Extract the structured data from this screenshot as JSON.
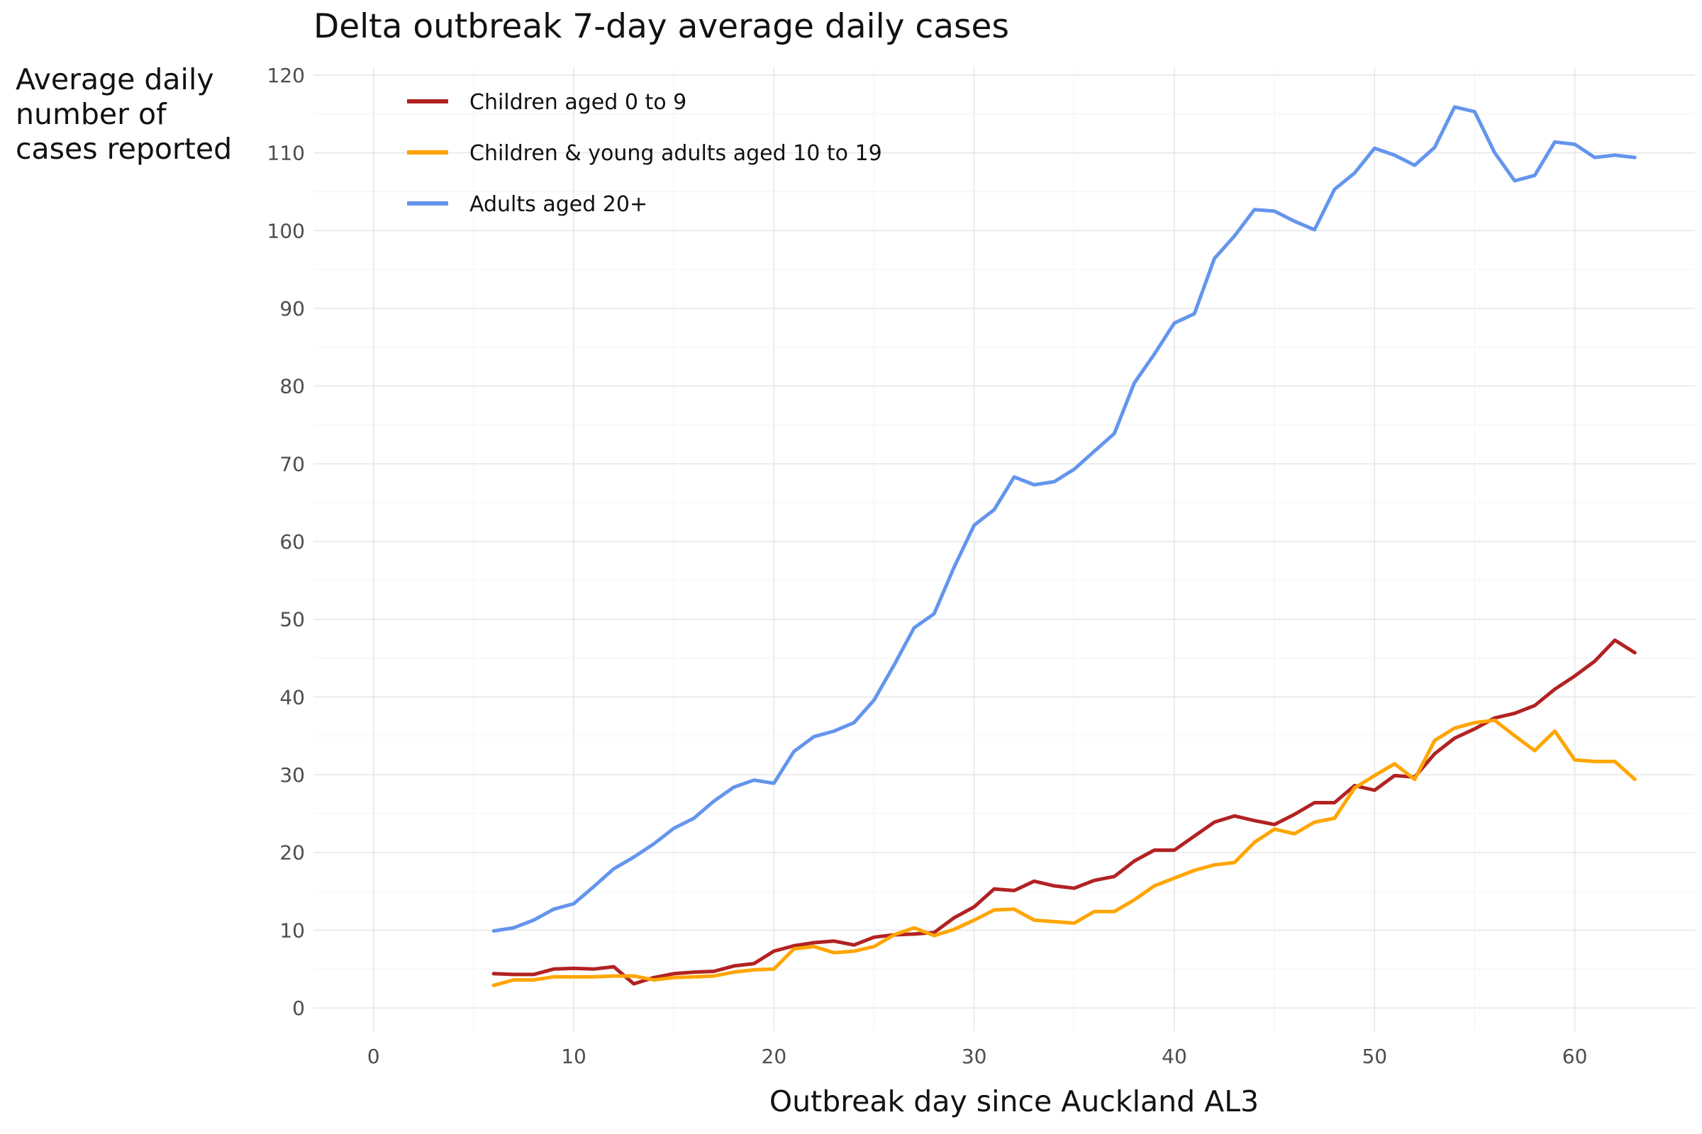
{
  "chart_data": {
    "type": "line",
    "title": "Delta outbreak 7-day average daily cases",
    "xlabel": "Outbreak day since Auckland AL3",
    "ylabel": "Average daily number of cases reported",
    "xlim": [
      -3,
      66
    ],
    "ylim": [
      -3,
      121
    ],
    "x_ticks": [
      0,
      10,
      20,
      30,
      40,
      50,
      60
    ],
    "y_ticks": [
      0,
      10,
      20,
      30,
      40,
      50,
      60,
      70,
      80,
      90,
      100,
      110,
      120
    ],
    "grid": true,
    "legend_position": "top-left",
    "x": [
      6,
      7,
      8,
      9,
      10,
      11,
      12,
      13,
      14,
      15,
      16,
      17,
      18,
      19,
      20,
      21,
      22,
      23,
      24,
      25,
      26,
      27,
      28,
      29,
      30,
      31,
      32,
      33,
      34,
      35,
      36,
      37,
      38,
      39,
      40,
      41,
      42,
      43,
      44,
      45,
      46,
      47,
      48,
      49,
      50,
      51,
      52,
      53,
      54,
      55,
      56,
      57,
      58,
      59,
      60,
      61,
      62,
      63
    ],
    "series": [
      {
        "name": "Children aged 0 to 9",
        "color": "#b22222",
        "values": [
          4.4,
          4.3,
          4.3,
          5.0,
          5.1,
          5.0,
          5.3,
          3.1,
          3.9,
          4.4,
          4.6,
          4.7,
          5.4,
          5.7,
          7.3,
          8.0,
          8.4,
          8.6,
          8.1,
          9.1,
          9.4,
          9.5,
          9.7,
          11.6,
          13.0,
          15.3,
          15.1,
          16.3,
          15.7,
          15.4,
          16.4,
          16.9,
          18.9,
          20.3,
          20.3,
          22.1,
          23.9,
          24.7,
          24.1,
          23.6,
          24.9,
          26.4,
          26.4,
          28.6,
          28.0,
          29.9,
          29.7,
          32.7,
          34.7,
          35.9,
          37.3,
          37.9,
          38.9,
          41.0,
          42.7,
          44.6,
          47.3,
          45.7
        ]
      },
      {
        "name": "Children & young adults aged 10 to 19",
        "color": "#ffa500",
        "values": [
          2.9,
          3.6,
          3.6,
          4.0,
          4.0,
          4.0,
          4.1,
          4.1,
          3.6,
          3.9,
          4.0,
          4.1,
          4.6,
          4.9,
          5.0,
          7.6,
          7.9,
          7.1,
          7.3,
          7.9,
          9.4,
          10.3,
          9.3,
          10.1,
          11.3,
          12.6,
          12.7,
          11.3,
          11.1,
          10.9,
          12.4,
          12.4,
          13.9,
          15.7,
          16.7,
          17.7,
          18.4,
          18.7,
          21.3,
          23.0,
          22.4,
          23.9,
          24.4,
          28.3,
          29.9,
          31.4,
          29.4,
          34.4,
          36.0,
          36.7,
          37.0,
          35.0,
          33.1,
          35.6,
          31.9,
          31.7,
          31.7,
          29.4
        ]
      },
      {
        "name": "Adults aged 20+",
        "color": "#6495ed",
        "values": [
          9.9,
          10.3,
          11.3,
          12.7,
          13.4,
          15.6,
          17.9,
          19.4,
          21.1,
          23.1,
          24.4,
          26.6,
          28.4,
          29.3,
          28.9,
          33.0,
          34.9,
          35.6,
          36.7,
          39.6,
          44.1,
          48.9,
          50.7,
          56.7,
          62.1,
          64.1,
          68.3,
          67.3,
          67.7,
          69.3,
          71.6,
          73.9,
          80.4,
          84.1,
          88.1,
          89.3,
          96.4,
          99.3,
          102.7,
          102.5,
          101.2,
          100.1,
          105.3,
          107.4,
          110.6,
          109.7,
          108.4,
          110.7,
          115.9,
          115.3,
          110.0,
          106.4,
          107.1,
          111.4,
          111.1,
          109.4,
          109.7,
          109.4
        ]
      }
    ]
  }
}
